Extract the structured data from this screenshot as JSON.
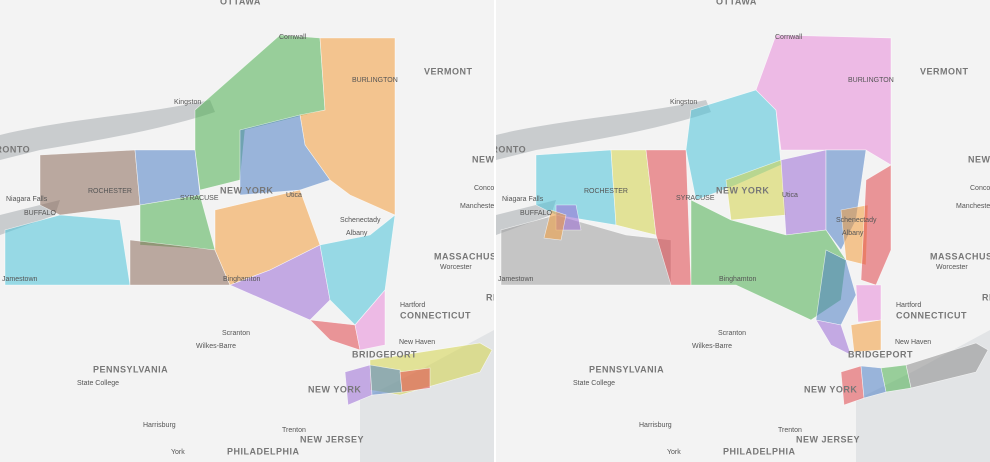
{
  "map_labels": [
    "OTTAWA",
    "Cornwall",
    "BURLINGTON",
    "VERMONT",
    "Kingston",
    "TORONTO",
    "ROCHESTER",
    "NEW YORK",
    "SYRACUSE",
    "Utica",
    "Niagara Falls",
    "BUFFALO",
    "Schenectady",
    "Albany",
    "Binghamton",
    "Jamestown",
    "NEW HAMPSHIRE",
    "Concord",
    "Manchester",
    "MASSACHUSETTS",
    "Worcester",
    "Hartford",
    "CONNECTICUT",
    "RHODE ISLAND",
    "Scranton",
    "Wilkes-Barre",
    "PENNSYLVANIA",
    "State College",
    "BRIDGEPORT",
    "New Haven",
    "NEW YORK",
    "Harrisburg",
    "Trenton",
    "NEW JERSEY",
    "York",
    "PHILADELPHIA"
  ]
}
